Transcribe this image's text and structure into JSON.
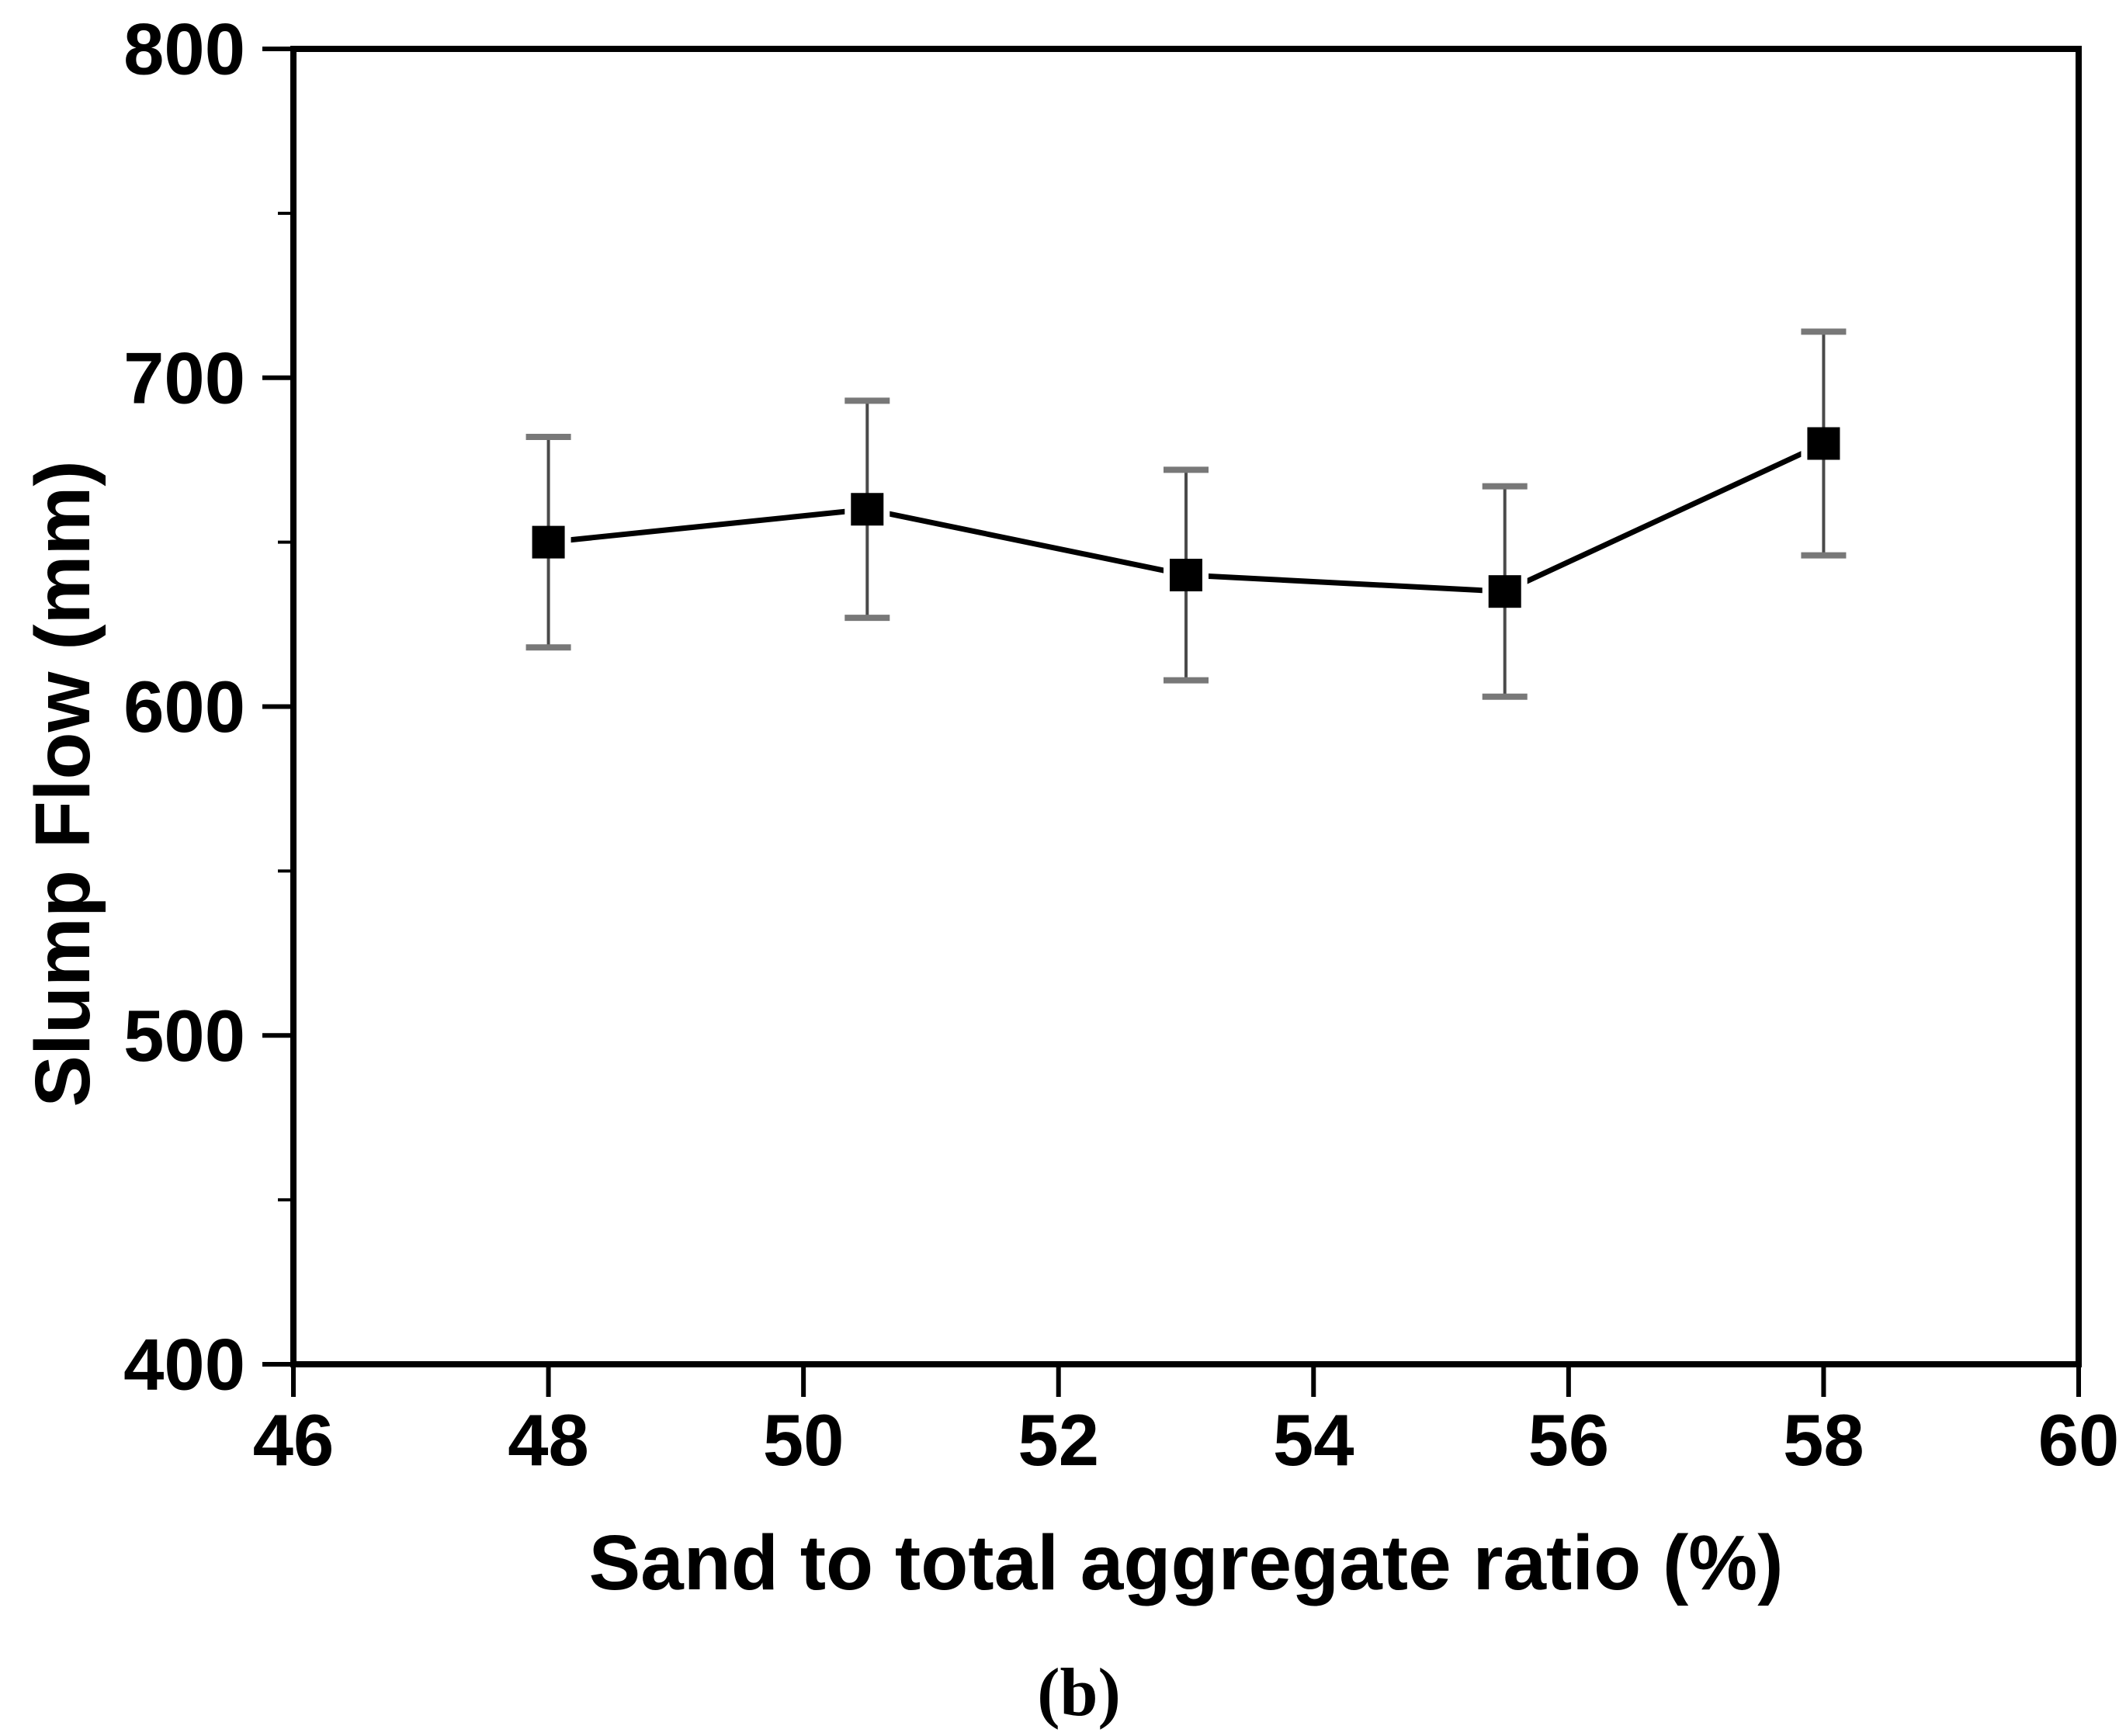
{
  "chart_data": {
    "type": "line",
    "title": "",
    "xlabel": "Sand to total aggregate ratio (%)",
    "ylabel": "Slump Flow (mm)",
    "caption": "(b)",
    "xlim": [
      46,
      60
    ],
    "ylim": [
      400,
      800
    ],
    "x_major_ticks": [
      46,
      48,
      50,
      52,
      54,
      56,
      58,
      60
    ],
    "x_tick_labels": [
      "46",
      "48",
      "50",
      "52",
      "54",
      "56",
      "58",
      "60"
    ],
    "y_major_ticks": [
      400,
      500,
      600,
      700,
      800
    ],
    "y_tick_labels": [
      "400",
      "500",
      "600",
      "700",
      "800"
    ],
    "y_minor_ticks": [
      450,
      550,
      650,
      750
    ],
    "grid": false,
    "legend": "none",
    "axis_color": "#000000",
    "background_color": "#ffffff",
    "series": [
      {
        "name": "Slump Flow",
        "marker": "filled-square",
        "marker_color": "#000000",
        "line_color": "#000000",
        "error_bar_color": "#4a4a4a",
        "error_cap_color": "#787878",
        "x": [
          48,
          50.5,
          53,
          55.5,
          58
        ],
        "y": [
          650,
          660,
          640,
          635,
          680
        ],
        "yerr": [
          32,
          33,
          32,
          32,
          34
        ]
      }
    ]
  }
}
